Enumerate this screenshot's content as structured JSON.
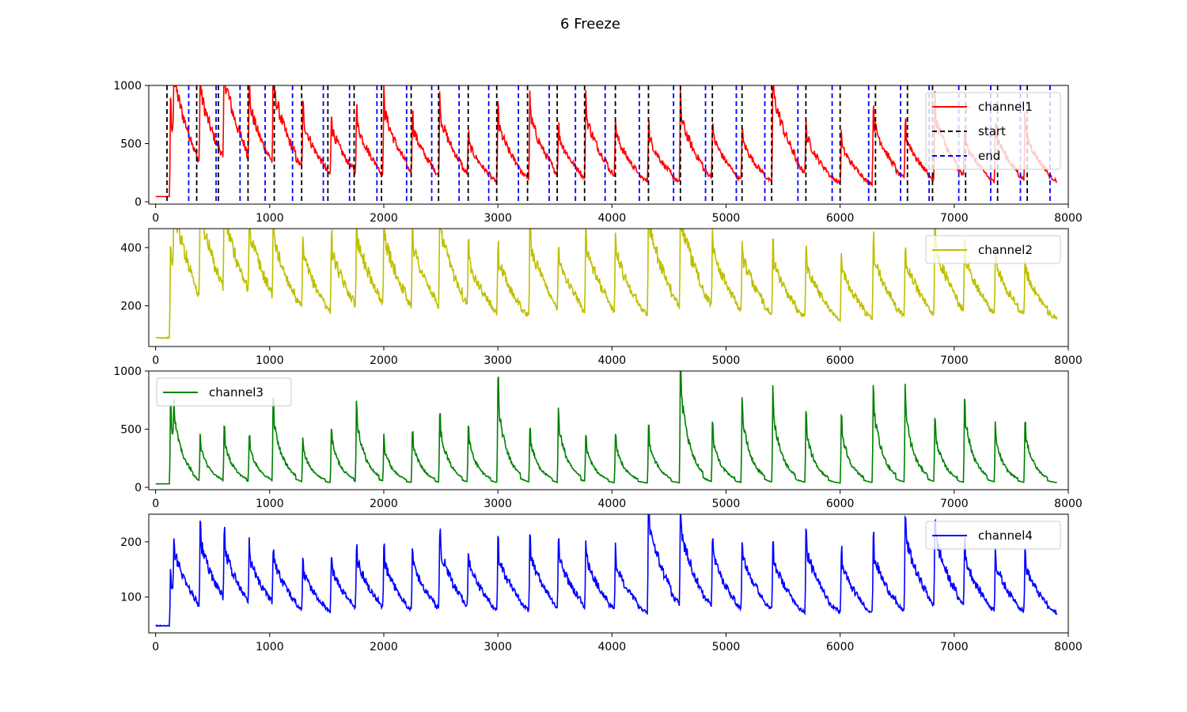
{
  "figure_title": "6 Freeze",
  "chart_data": [
    {
      "type": "line",
      "xlim": [
        -60,
        8000
      ],
      "ylim": [
        -20,
        1000
      ],
      "xticks": [
        0,
        1000,
        2000,
        3000,
        4000,
        5000,
        6000,
        7000,
        8000
      ],
      "yticks": [
        0,
        500,
        1000
      ],
      "legend_position": "top-right",
      "series": [
        {
          "name": "channel1",
          "color": "#ff0000",
          "style": "solid",
          "baseline": 45,
          "decay": 0.45
        }
      ],
      "vlines": [
        {
          "name": "start",
          "color": "#000000",
          "style": "dashed",
          "x": [
            100,
            360,
            550,
            810,
            1040,
            1280,
            1510,
            1740,
            1980,
            2240,
            2480,
            2740,
            2990,
            3260,
            3520,
            3760,
            4030,
            4320,
            4600,
            4880,
            5140,
            5400,
            5700,
            6000,
            6310,
            6590,
            6810,
            7100,
            7380,
            7640
          ]
        },
        {
          "name": "end",
          "color": "#0000ff",
          "style": "dashed",
          "x": [
            290,
            530,
            740,
            960,
            1200,
            1470,
            1700,
            1940,
            2200,
            2420,
            2660,
            2920,
            3180,
            3450,
            3680,
            3940,
            4240,
            4540,
            4820,
            5090,
            5340,
            5630,
            5930,
            6250,
            6530,
            6780,
            7040,
            7320,
            7580,
            7840
          ]
        }
      ]
    },
    {
      "type": "line",
      "xlim": [
        -60,
        8000
      ],
      "ylim": [
        60,
        465
      ],
      "xticks": [
        0,
        1000,
        2000,
        3000,
        4000,
        5000,
        6000,
        7000,
        8000
      ],
      "yticks": [
        200,
        400
      ],
      "legend_position": "top-right",
      "series": [
        {
          "name": "channel2",
          "color": "#bfbf00",
          "style": "solid",
          "baseline": 90,
          "decay": 0.5
        }
      ]
    },
    {
      "type": "line",
      "xlim": [
        -60,
        8000
      ],
      "ylim": [
        -20,
        1000
      ],
      "xticks": [
        0,
        1000,
        2000,
        3000,
        4000,
        5000,
        6000,
        7000,
        8000
      ],
      "yticks": [
        0,
        500,
        1000
      ],
      "legend_position": "top-left",
      "series": [
        {
          "name": "channel3",
          "color": "#008000",
          "style": "solid",
          "baseline": 30,
          "decay": 0.12
        }
      ]
    },
    {
      "type": "line",
      "xlim": [
        -60,
        8000
      ],
      "ylim": [
        35,
        250
      ],
      "xticks": [
        0,
        1000,
        2000,
        3000,
        4000,
        5000,
        6000,
        7000,
        8000
      ],
      "yticks": [
        100,
        200
      ],
      "legend_position": "top-right",
      "series": [
        {
          "name": "channel4",
          "color": "#0000ff",
          "style": "solid",
          "baseline": 48,
          "decay": 0.4
        }
      ]
    }
  ],
  "signal": {
    "x_start": 0,
    "x_end": 7900,
    "step": 5,
    "peaks": [
      {
        "x": 130,
        "a": [
          750,
          390,
          630,
          135
        ]
      },
      {
        "x": 160,
        "a": [
          600,
          340,
          320,
          130
        ]
      },
      {
        "x": 390,
        "a": [
          760,
          430,
          380,
          185
        ]
      },
      {
        "x": 600,
        "a": [
          890,
          400,
          440,
          160
        ]
      },
      {
        "x": 820,
        "a": [
          590,
          345,
          390,
          145
        ]
      },
      {
        "x": 1030,
        "a": [
          810,
          330,
          700,
          145
        ]
      },
      {
        "x": 1290,
        "a": [
          520,
          300,
          360,
          130
        ]
      },
      {
        "x": 1540,
        "a": [
          520,
          335,
          470,
          140
        ]
      },
      {
        "x": 1760,
        "a": [
          560,
          375,
          660,
          155
        ]
      },
      {
        "x": 2000,
        "a": [
          700,
          365,
          370,
          145
        ]
      },
      {
        "x": 2250,
        "a": [
          500,
          340,
          440,
          150
        ]
      },
      {
        "x": 2490,
        "a": [
          650,
          400,
          580,
          175
        ]
      },
      {
        "x": 2740,
        "a": [
          360,
          275,
          470,
          145
        ]
      },
      {
        "x": 3000,
        "a": [
          620,
          305,
          820,
          165
        ]
      },
      {
        "x": 3280,
        "a": [
          680,
          385,
          450,
          170
        ]
      },
      {
        "x": 3530,
        "a": [
          430,
          295,
          610,
          160
        ]
      },
      {
        "x": 3770,
        "a": [
          670,
          350,
          380,
          155
        ]
      },
      {
        "x": 4030,
        "a": [
          470,
          330,
          410,
          145
        ]
      },
      {
        "x": 4320,
        "a": [
          500,
          460,
          470,
          240
        ]
      },
      {
        "x": 4600,
        "a": [
          700,
          445,
          970,
          205
        ]
      },
      {
        "x": 4880,
        "a": [
          470,
          325,
          470,
          160
        ]
      },
      {
        "x": 5140,
        "a": [
          450,
          310,
          680,
          165
        ]
      },
      {
        "x": 5410,
        "a": [
          940,
          305,
          740,
          155
        ]
      },
      {
        "x": 5700,
        "a": [
          430,
          310,
          540,
          180
        ]
      },
      {
        "x": 6010,
        "a": [
          420,
          295,
          560,
          150
        ]
      },
      {
        "x": 6290,
        "a": [
          670,
          340,
          780,
          170
        ]
      },
      {
        "x": 6570,
        "a": [
          480,
          315,
          740,
          205
        ]
      },
      {
        "x": 6830,
        "a": [
          680,
          370,
          510,
          195
        ]
      },
      {
        "x": 7090,
        "a": [
          400,
          310,
          700,
          150
        ]
      },
      {
        "x": 7360,
        "a": [
          530,
          300,
          460,
          145
        ]
      },
      {
        "x": 7620,
        "a": [
          520,
          275,
          520,
          145
        ]
      }
    ]
  }
}
